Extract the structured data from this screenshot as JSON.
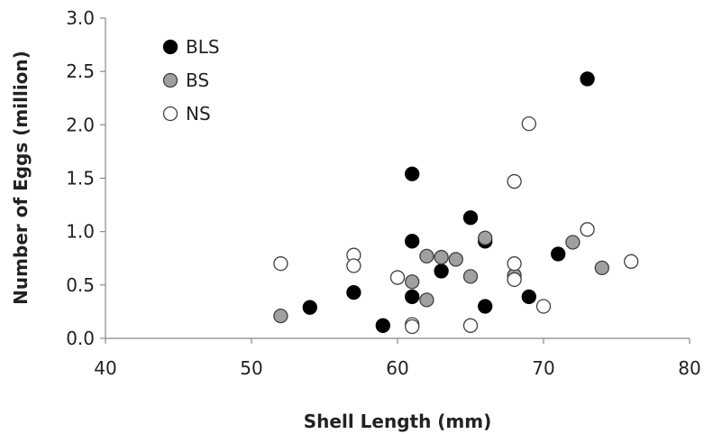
{
  "chart_data": {
    "type": "scatter",
    "xlabel": "Shell Length (mm)",
    "ylabel": "Number of Eggs (million)",
    "xlim": [
      40,
      80
    ],
    "ylim": [
      0,
      3
    ],
    "xticks": [
      "40",
      "50",
      "60",
      "70",
      "80"
    ],
    "yticks": [
      "0.0",
      "0.5",
      "1.0",
      "1.5",
      "2.0",
      "2.5",
      "3.0"
    ],
    "grid": false,
    "legend_position": "top-left",
    "series": [
      {
        "name": "BLS",
        "fill": "#000000",
        "stroke": "#000000",
        "points": [
          {
            "x": 54,
            "y": 0.29
          },
          {
            "x": 57,
            "y": 0.43
          },
          {
            "x": 59,
            "y": 0.12
          },
          {
            "x": 61,
            "y": 1.54
          },
          {
            "x": 61,
            "y": 0.91
          },
          {
            "x": 61,
            "y": 0.39
          },
          {
            "x": 63,
            "y": 0.63
          },
          {
            "x": 65,
            "y": 1.13
          },
          {
            "x": 66,
            "y": 0.91
          },
          {
            "x": 66,
            "y": 0.3
          },
          {
            "x": 69,
            "y": 0.39
          },
          {
            "x": 71,
            "y": 0.79
          },
          {
            "x": 73,
            "y": 2.43
          }
        ]
      },
      {
        "name": "BS",
        "fill": "#a0a0a0",
        "stroke": "#404040",
        "points": [
          {
            "x": 52,
            "y": 0.21
          },
          {
            "x": 61,
            "y": 0.53
          },
          {
            "x": 62,
            "y": 0.77
          },
          {
            "x": 62,
            "y": 0.36
          },
          {
            "x": 63,
            "y": 0.76
          },
          {
            "x": 64,
            "y": 0.74
          },
          {
            "x": 65,
            "y": 0.58
          },
          {
            "x": 66,
            "y": 0.94
          },
          {
            "x": 68,
            "y": 0.59
          },
          {
            "x": 72,
            "y": 0.9
          },
          {
            "x": 74,
            "y": 0.66
          }
        ]
      },
      {
        "name": "NS",
        "fill": "#ffffff",
        "stroke": "#404040",
        "points": [
          {
            "x": 52,
            "y": 0.7
          },
          {
            "x": 57,
            "y": 0.78
          },
          {
            "x": 57,
            "y": 0.68
          },
          {
            "x": 60,
            "y": 0.57
          },
          {
            "x": 61,
            "y": 0.13
          },
          {
            "x": 61,
            "y": 0.11
          },
          {
            "x": 65,
            "y": 0.12
          },
          {
            "x": 68,
            "y": 1.47
          },
          {
            "x": 68,
            "y": 0.7
          },
          {
            "x": 68,
            "y": 0.55
          },
          {
            "x": 69,
            "y": 2.01
          },
          {
            "x": 70,
            "y": 0.3
          },
          {
            "x": 73,
            "y": 1.02
          },
          {
            "x": 76,
            "y": 0.72
          }
        ]
      }
    ]
  }
}
